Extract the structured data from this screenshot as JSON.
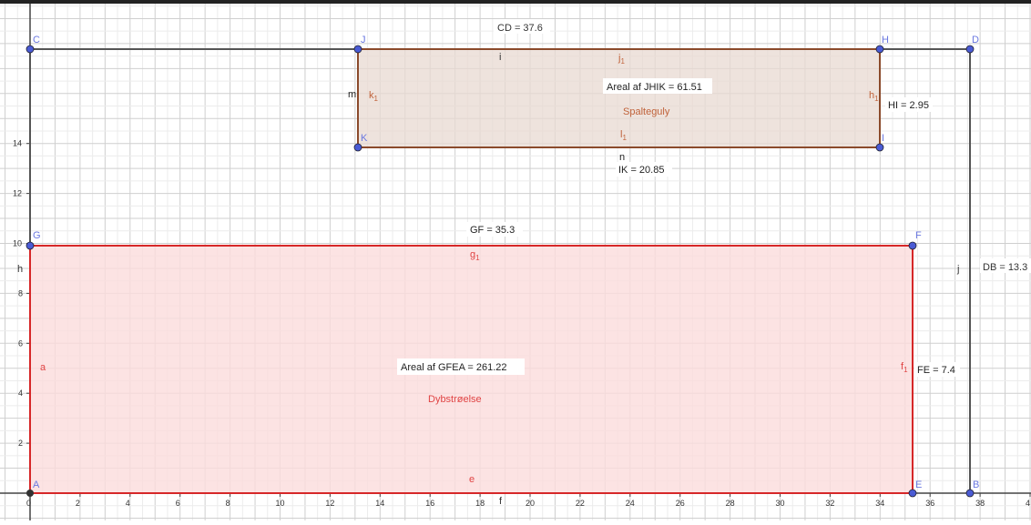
{
  "axes": {
    "x_ticks": [
      "0",
      "2",
      "4",
      "6",
      "8",
      "10",
      "12",
      "14",
      "16",
      "18",
      "20",
      "22",
      "24",
      "26",
      "28",
      "30",
      "32",
      "34",
      "36",
      "38",
      "4"
    ],
    "y_ticks": [
      "2",
      "4",
      "6",
      "8",
      "10",
      "12",
      "14"
    ]
  },
  "points": {
    "A": "A",
    "B": "B",
    "C": "C",
    "D": "D",
    "E": "E",
    "F": "F",
    "G": "G",
    "H": "H",
    "I": "I",
    "J": "J",
    "K": "K"
  },
  "outer": {
    "top_label": "CD = 37.6",
    "right_label": "DB = 13.3",
    "seg_i": "i",
    "seg_j": "j",
    "seg_h": "h",
    "seg_f": "f"
  },
  "upper_rect": {
    "area_label": "Areal af  JHIK = 61.51",
    "name": "Spalteguly",
    "side_label": "HI = 2.95",
    "bottom_label": "IK = 20.85",
    "seg_m": "m",
    "seg_n": "n",
    "j1": "j",
    "k1": "k",
    "l1": "l",
    "h1": "h",
    "sub": "1",
    "color": "#a0522d",
    "fill": "#e8d9d2"
  },
  "lower_rect": {
    "area_label": "Areal af  GFEA = 261.22",
    "name": "Dybstrøelse",
    "top_label": "GF = 35.3",
    "side_label": "FE = 7.4",
    "seg_a": "a",
    "seg_e": "e",
    "f1": "f",
    "g1": "g",
    "sub": "1",
    "color": "#d62728",
    "fill": "#fbdcdc"
  },
  "colors": {
    "grid_minor": "#ececec",
    "grid_major": "#cfcfcf",
    "axis": "#444444",
    "outer_line": "#555555",
    "point": "#4a5bd4",
    "point_label": "#6a78e0"
  }
}
